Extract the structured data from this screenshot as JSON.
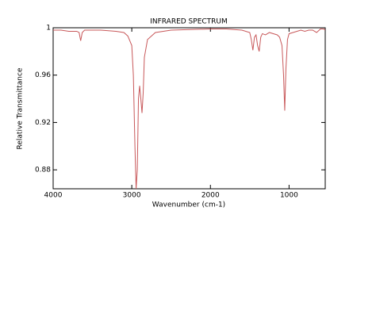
{
  "chart_data": {
    "type": "line",
    "title": "INFRARED SPECTRUM",
    "x_label": "Wavenumber (cm-1)",
    "y_label": "Relative Transmittance",
    "x": [
      4000,
      3900,
      3800,
      3700,
      3670,
      3650,
      3630,
      3600,
      3400,
      3200,
      3100,
      3050,
      3000,
      2980,
      2960,
      2945,
      2930,
      2915,
      2900,
      2885,
      2870,
      2855,
      2840,
      2800,
      2700,
      2500,
      2000,
      1800,
      1600,
      1500,
      1480,
      1460,
      1440,
      1420,
      1400,
      1380,
      1360,
      1340,
      1300,
      1250,
      1200,
      1150,
      1120,
      1090,
      1070,
      1055,
      1040,
      1020,
      1000,
      950,
      900,
      850,
      800,
      750,
      700,
      650,
      600,
      560,
      540
    ],
    "values": [
      0.998,
      0.998,
      0.997,
      0.997,
      0.996,
      0.989,
      0.996,
      0.998,
      0.998,
      0.997,
      0.996,
      0.993,
      0.985,
      0.96,
      0.9,
      0.864,
      0.88,
      0.94,
      0.951,
      0.94,
      0.928,
      0.945,
      0.975,
      0.99,
      0.996,
      0.998,
      0.999,
      0.999,
      0.998,
      0.996,
      0.99,
      0.981,
      0.992,
      0.994,
      0.985,
      0.98,
      0.992,
      0.995,
      0.994,
      0.996,
      0.995,
      0.994,
      0.992,
      0.985,
      0.96,
      0.93,
      0.965,
      0.99,
      0.995,
      0.996,
      0.997,
      0.998,
      0.997,
      0.998,
      0.998,
      0.996,
      0.999,
      0.999,
      0.998
    ],
    "color": "#c8585a",
    "xlim": [
      4000,
      540
    ],
    "xticks": [
      4000,
      3000,
      2000,
      1000
    ],
    "ylim": [
      0.864,
      1
    ],
    "yticks": [
      0.88,
      0.92,
      0.96,
      1
    ]
  }
}
